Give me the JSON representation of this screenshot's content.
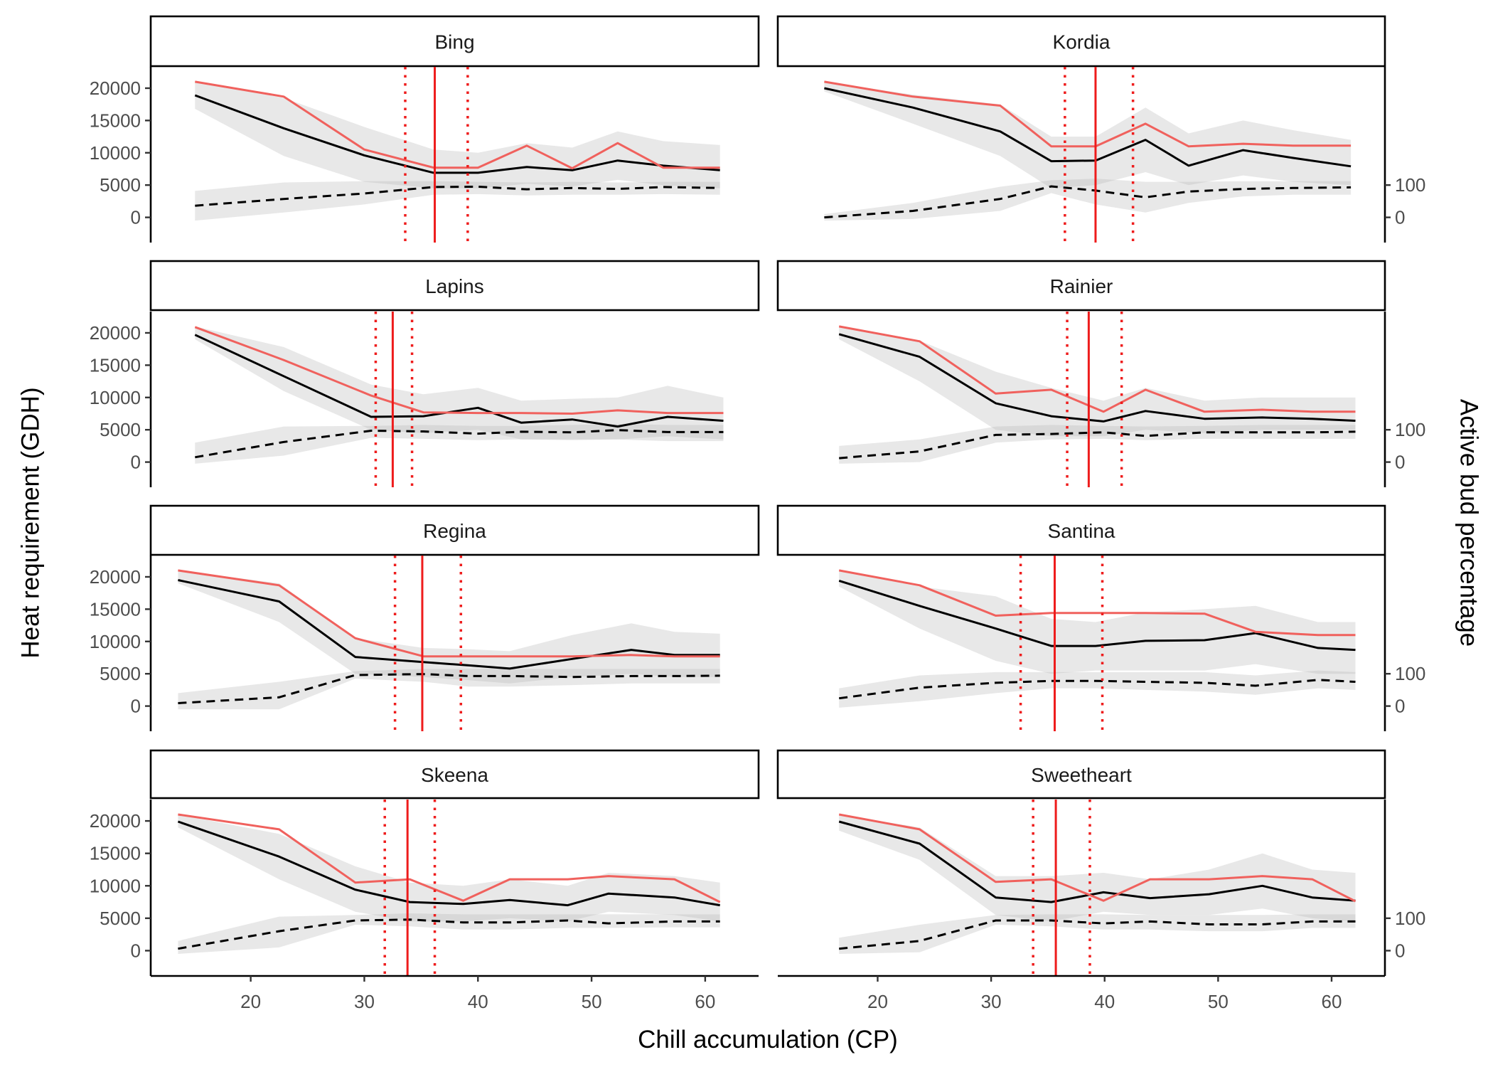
{
  "chart_data": {
    "type": "line",
    "xlabel": "Chill accumulation (CP)",
    "ylabel": "Heat requirement (GDH)",
    "y2label": "Active bud percentage",
    "xlim": [
      11.2,
      64.7
    ],
    "ylim": [
      -3900,
      23300
    ],
    "y2lim": [
      -78,
      466
    ],
    "xticks": [
      20,
      30,
      40,
      50,
      60
    ],
    "yticks": [
      0,
      5000,
      10000,
      15000,
      20000
    ],
    "y2ticks": [
      0,
      100
    ],
    "grid": false,
    "colors": {
      "solid": "#000000",
      "red": "#f0615d",
      "vline": "#ee1c1c",
      "band": "#b3b3b3"
    },
    "panels": [
      {
        "title": "Bing",
        "x": [
          15.1,
          22.9,
          30.0,
          36.1,
          40.0,
          44.3,
          48.3,
          52.3,
          56.3,
          61.3
        ],
        "solid": [
          18900,
          13800,
          9600,
          6900,
          6900,
          7800,
          7300,
          8800,
          8000,
          7300
        ],
        "solid_band": [
          [
            16800,
            21000
          ],
          [
            9500,
            18500
          ],
          [
            5500,
            14000
          ],
          [
            4500,
            10500
          ],
          [
            4500,
            10000
          ],
          [
            5200,
            11500
          ],
          [
            4800,
            10800
          ],
          [
            5800,
            13300
          ],
          [
            5000,
            11800
          ],
          [
            4500,
            11200
          ]
        ],
        "red": [
          21000,
          18700,
          10500,
          7700,
          7700,
          11100,
          7600,
          11500,
          7700,
          7700
        ],
        "dashed": [
          36,
          57,
          74,
          94,
          95,
          87,
          91,
          88,
          94,
          91
        ],
        "dashed_band": [
          [
            -10,
            82
          ],
          [
            15,
            108
          ],
          [
            40,
            112
          ],
          [
            70,
            112
          ],
          [
            72,
            110
          ],
          [
            68,
            108
          ],
          [
            70,
            110
          ],
          [
            70,
            108
          ],
          [
            72,
            110
          ],
          [
            70,
            110
          ]
        ],
        "vline": {
          "center": 36.2,
          "lower": 33.6,
          "upper": 39.1
        }
      },
      {
        "title": "Kordia",
        "x": [
          15.3,
          23.1,
          30.8,
          35.3,
          39.2,
          43.6,
          47.4,
          52.2,
          56.6,
          61.7
        ],
        "solid": [
          20000,
          17000,
          13300,
          8700,
          8800,
          12000,
          8000,
          10400,
          9200,
          7900
        ],
        "solid_band": [
          [
            19500,
            21000
          ],
          [
            14500,
            19000
          ],
          [
            9500,
            17500
          ],
          [
            4500,
            12500
          ],
          [
            5000,
            12500
          ],
          [
            7000,
            17000
          ],
          [
            5000,
            13000
          ],
          [
            6500,
            15000
          ],
          [
            5500,
            13500
          ],
          [
            5000,
            12000
          ]
        ],
        "red": [
          21000,
          18700,
          17300,
          11000,
          11000,
          14500,
          11000,
          11400,
          11100,
          11100
        ],
        "dashed": [
          0,
          20,
          57,
          96,
          83,
          62,
          80,
          88,
          91,
          93
        ],
        "dashed_band": [
          [
            -10,
            10
          ],
          [
            -5,
            45
          ],
          [
            20,
            95
          ],
          [
            75,
            115
          ],
          [
            40,
            120
          ],
          [
            15,
            110
          ],
          [
            45,
            110
          ],
          [
            65,
            112
          ],
          [
            70,
            112
          ],
          [
            70,
            112
          ]
        ],
        "vline": {
          "center": 39.2,
          "lower": 36.5,
          "upper": 42.5
        }
      },
      {
        "title": "Lapins",
        "x": [
          15.1,
          22.9,
          30.6,
          35.2,
          40.0,
          43.8,
          48.3,
          52.3,
          56.7,
          61.6
        ],
        "solid": [
          19700,
          13300,
          7000,
          7100,
          8400,
          6100,
          6600,
          5500,
          7000,
          6400
        ],
        "solid_band": [
          [
            19000,
            21000
          ],
          [
            11000,
            17800
          ],
          [
            5000,
            12000
          ],
          [
            4500,
            10500
          ],
          [
            5000,
            11500
          ],
          [
            3500,
            9500
          ],
          [
            3500,
            9800
          ],
          [
            3500,
            10000
          ],
          [
            4000,
            11800
          ],
          [
            3500,
            10000
          ]
        ],
        "red": [
          20900,
          15800,
          10300,
          7700,
          7600,
          7600,
          7500,
          8000,
          7600,
          7600
        ],
        "dashed": [
          15,
          62,
          97,
          95,
          88,
          94,
          92,
          99,
          93,
          93
        ],
        "dashed_band": [
          [
            -5,
            60
          ],
          [
            20,
            110
          ],
          [
            75,
            112
          ],
          [
            72,
            115
          ],
          [
            68,
            112
          ],
          [
            70,
            112
          ],
          [
            68,
            115
          ],
          [
            70,
            118
          ],
          [
            65,
            115
          ],
          [
            65,
            115
          ]
        ],
        "vline": {
          "center": 32.5,
          "lower": 31.0,
          "upper": 34.2
        }
      },
      {
        "title": "Rainier",
        "x": [
          16.6,
          23.7,
          30.4,
          35.3,
          39.9,
          43.6,
          48.8,
          53.9,
          58.3,
          62.1
        ],
        "solid": [
          19800,
          16300,
          9100,
          7100,
          6300,
          7900,
          6700,
          6900,
          6700,
          6400
        ],
        "solid_band": [
          [
            19000,
            21000
          ],
          [
            12500,
            18800
          ],
          [
            5000,
            14000
          ],
          [
            4000,
            11500
          ],
          [
            4000,
            9500
          ],
          [
            5000,
            11500
          ],
          [
            4500,
            9500
          ],
          [
            5000,
            10000
          ],
          [
            5000,
            10000
          ],
          [
            5000,
            10000
          ]
        ],
        "red": [
          21000,
          18700,
          10600,
          11200,
          7800,
          11200,
          7800,
          8100,
          7800,
          7800
        ],
        "dashed": [
          12,
          33,
          84,
          87,
          92,
          81,
          92,
          92,
          92,
          94
        ],
        "dashed_band": [
          [
            -5,
            50
          ],
          [
            0,
            70
          ],
          [
            60,
            110
          ],
          [
            70,
            115
          ],
          [
            72,
            112
          ],
          [
            68,
            110
          ],
          [
            72,
            112
          ],
          [
            72,
            115
          ],
          [
            72,
            115
          ],
          [
            72,
            115
          ]
        ],
        "vline": {
          "center": 38.6,
          "lower": 36.7,
          "upper": 41.5
        }
      },
      {
        "title": "Regina",
        "x": [
          13.6,
          22.5,
          29.2,
          35.2,
          39.2,
          42.8,
          48.3,
          53.5,
          57.3,
          61.3
        ],
        "solid": [
          19500,
          16200,
          7600,
          6800,
          6300,
          5800,
          7300,
          8700,
          7900,
          7900
        ],
        "solid_band": [
          [
            19000,
            21000
          ],
          [
            13000,
            19000
          ],
          [
            5000,
            10500
          ],
          [
            4500,
            9000
          ],
          [
            4000,
            8800
          ],
          [
            3500,
            8500
          ],
          [
            4500,
            11000
          ],
          [
            5000,
            12800
          ],
          [
            4500,
            11500
          ],
          [
            4500,
            11200
          ]
        ],
        "red": [
          21000,
          18700,
          10500,
          7700,
          7700,
          7700,
          7700,
          7900,
          7700,
          7700
        ],
        "dashed": [
          9,
          27,
          96,
          99,
          93,
          93,
          90,
          93,
          93,
          94
        ],
        "dashed_band": [
          [
            -10,
            40
          ],
          [
            -10,
            75
          ],
          [
            85,
            108
          ],
          [
            75,
            115
          ],
          [
            60,
            115
          ],
          [
            60,
            115
          ],
          [
            65,
            115
          ],
          [
            70,
            115
          ],
          [
            70,
            115
          ],
          [
            70,
            115
          ]
        ],
        "vline": {
          "center": 35.1,
          "lower": 32.7,
          "upper": 38.5
        }
      },
      {
        "title": "Santina",
        "x": [
          16.6,
          23.7,
          30.4,
          35.3,
          39.2,
          43.6,
          48.8,
          53.3,
          58.8,
          62.1
        ],
        "solid": [
          19400,
          15500,
          12000,
          9300,
          9300,
          10100,
          10200,
          11300,
          9000,
          8700
        ],
        "solid_band": [
          [
            18500,
            21000
          ],
          [
            12000,
            18500
          ],
          [
            7000,
            17000
          ],
          [
            5000,
            13500
          ],
          [
            5500,
            13000
          ],
          [
            5500,
            14500
          ],
          [
            5500,
            15000
          ],
          [
            6500,
            15500
          ],
          [
            5000,
            13000
          ],
          [
            5000,
            13000
          ]
        ],
        "red": [
          21000,
          18700,
          14000,
          14400,
          14400,
          14400,
          14300,
          11500,
          11000,
          11000
        ],
        "dashed": [
          24,
          57,
          72,
          78,
          78,
          75,
          72,
          63,
          81,
          75
        ],
        "dashed_band": [
          [
            -5,
            55
          ],
          [
            15,
            95
          ],
          [
            40,
            105
          ],
          [
            55,
            105
          ],
          [
            55,
            105
          ],
          [
            50,
            105
          ],
          [
            45,
            105
          ],
          [
            35,
            95
          ],
          [
            55,
            110
          ],
          [
            50,
            105
          ]
        ],
        "vline": {
          "center": 35.6,
          "lower": 32.6,
          "upper": 39.8
        }
      },
      {
        "title": "Skeena",
        "x": [
          13.6,
          22.5,
          29.2,
          34.0,
          38.7,
          42.8,
          47.9,
          51.5,
          57.3,
          61.3
        ],
        "solid": [
          19900,
          14500,
          9400,
          7500,
          7200,
          7800,
          7000,
          8800,
          8200,
          7000
        ],
        "solid_band": [
          [
            19000,
            21000
          ],
          [
            11000,
            18000
          ],
          [
            6000,
            13000
          ],
          [
            4500,
            10500
          ],
          [
            4500,
            10000
          ],
          [
            5000,
            11000
          ],
          [
            4500,
            10000
          ],
          [
            6000,
            12000
          ],
          [
            5500,
            11500
          ],
          [
            4500,
            10500
          ]
        ],
        "red": [
          21000,
          18700,
          10500,
          11000,
          7700,
          11000,
          11000,
          11500,
          11000,
          7500
        ],
        "dashed": [
          6,
          60,
          93,
          96,
          87,
          87,
          93,
          84,
          90,
          90
        ],
        "dashed_band": [
          [
            -10,
            30
          ],
          [
            10,
            105
          ],
          [
            80,
            110
          ],
          [
            75,
            115
          ],
          [
            65,
            112
          ],
          [
            65,
            112
          ],
          [
            70,
            112
          ],
          [
            70,
            112
          ],
          [
            72,
            112
          ],
          [
            72,
            112
          ]
        ],
        "vline": {
          "center": 33.8,
          "lower": 31.8,
          "upper": 36.2
        }
      },
      {
        "title": "Sweetheart",
        "x": [
          16.6,
          23.7,
          30.4,
          35.3,
          39.9,
          44.0,
          49.2,
          53.9,
          58.3,
          62.1
        ],
        "solid": [
          19900,
          16500,
          8200,
          7500,
          9000,
          8100,
          8700,
          10000,
          8200,
          7700
        ],
        "solid_band": [
          [
            18500,
            21000
          ],
          [
            14000,
            19000
          ],
          [
            5500,
            11500
          ],
          [
            4500,
            11500
          ],
          [
            6000,
            12000
          ],
          [
            5500,
            11000
          ],
          [
            5500,
            12500
          ],
          [
            6500,
            15000
          ],
          [
            5000,
            12500
          ],
          [
            4500,
            12000
          ]
        ],
        "red": [
          21000,
          18700,
          10600,
          11000,
          7700,
          11000,
          11000,
          11500,
          11000,
          7600
        ],
        "dashed": [
          6,
          30,
          93,
          93,
          84,
          90,
          81,
          81,
          90,
          90
        ],
        "dashed_band": [
          [
            -10,
            40
          ],
          [
            -5,
            80
          ],
          [
            80,
            110
          ],
          [
            75,
            112
          ],
          [
            65,
            112
          ],
          [
            65,
            110
          ],
          [
            60,
            110
          ],
          [
            60,
            110
          ],
          [
            70,
            112
          ],
          [
            70,
            112
          ]
        ],
        "vline": {
          "center": 35.7,
          "lower": 33.7,
          "upper": 38.7
        }
      }
    ]
  }
}
